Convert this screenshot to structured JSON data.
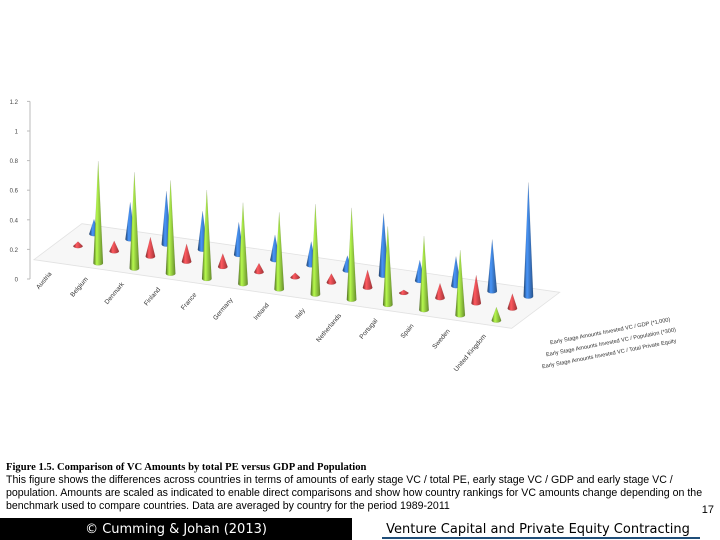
{
  "chart_data": {
    "type": "bar",
    "subtype": "3d-cone",
    "categories": [
      "Austria",
      "Belgium",
      "Denmark",
      "Finland",
      "France",
      "Germany",
      "Ireland",
      "Italy",
      "Netherlands",
      "Portugal",
      "Spain",
      "Sweden",
      "United Kingdom"
    ],
    "yticks": [
      "0",
      "0.2",
      "0.4",
      "0.6",
      "0.8",
      "1",
      "1.2"
    ],
    "ylim": [
      0,
      1.2
    ],
    "series": [
      {
        "name": "Early Stage Amounts Invested VC / Total Private Equity",
        "color": "#92c83e",
        "values": [
          0.0,
          0.69,
          0.65,
          0.63,
          0.6,
          0.55,
          0.52,
          0.61,
          0.62,
          0.53,
          0.5,
          0.44,
          0.09
        ]
      },
      {
        "name": "Early Stage Amounts Invested VC / Population (*300)",
        "color": "#e5484d",
        "values": [
          0.03,
          0.07,
          0.13,
          0.12,
          0.09,
          0.06,
          0.03,
          0.06,
          0.12,
          0.02,
          0.1,
          0.19,
          0.1
        ]
      },
      {
        "name": "Early Stage Amounts Invested VC / GDP (*1,000)",
        "color": "#3a78c8",
        "values": [
          0.1,
          0.25,
          0.36,
          0.26,
          0.22,
          0.17,
          0.16,
          0.1,
          0.42,
          0.14,
          0.2,
          0.35,
          0.77
        ]
      }
    ]
  },
  "caption": {
    "title": "Figure 1.5. Comparison of VC Amounts by total PE versus GDP and Population",
    "body": "This figure shows the differences across countries in terms of amounts of early stage VC / total PE, early stage VC / GDP and early stage VC / population. Amounts are scaled as indicated to enable direct comparisons and show how country rankings for VC amounts change depending on the benchmark used to compare countries.  Data are averaged by country for the period 1989-2011"
  },
  "page_number": "17",
  "footer": {
    "left": "© Cumming & Johan (2013)",
    "right": "Venture Capital and Private Equity Contracting"
  }
}
